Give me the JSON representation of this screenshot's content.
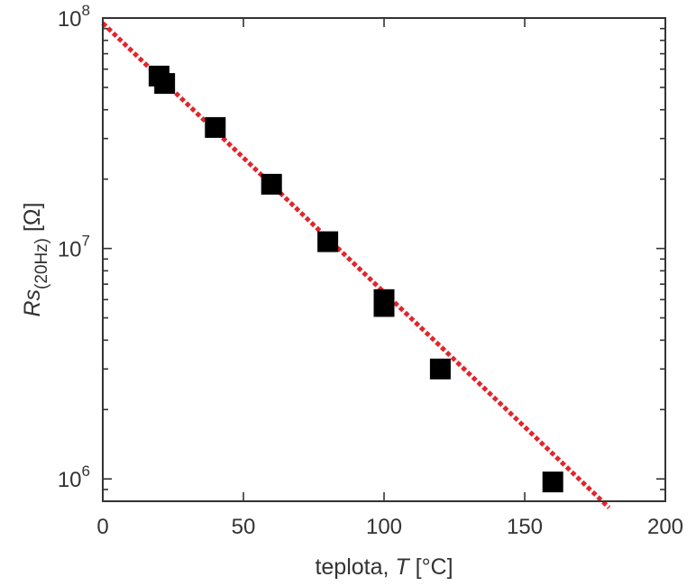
{
  "chart_data": {
    "type": "scatter",
    "xlabel": "teplota, T [°C]",
    "ylabel": "Rs(20Hz) [Ω]",
    "xlim": [
      0,
      200
    ],
    "ylim": [
      800000,
      100000000
    ],
    "yscale": "log",
    "x_ticks": [
      0,
      50,
      100,
      150,
      200
    ],
    "y_ticks": [
      1000000,
      10000000,
      100000000
    ],
    "grid": false,
    "legend": "none",
    "series": [
      {
        "type": "scatter",
        "marker": "square",
        "color": "#000000",
        "x": [
          20,
          22,
          40,
          60,
          80,
          100,
          100,
          120,
          160
        ],
        "y": [
          56000000,
          52000000,
          33500000,
          19000000,
          10700000,
          6000000,
          5600000,
          3000000,
          970000
        ]
      },
      {
        "type": "line",
        "style": "dotted",
        "color": "#e2252b",
        "x": [
          0,
          180
        ],
        "y": [
          95000000,
          750000
        ]
      }
    ]
  },
  "labels": {
    "x_main": "teplota, ",
    "x_var": "T",
    "x_unit": " [°C]",
    "y_main": "Rs",
    "y_sub": "(20Hz)",
    "y_unit": " [Ω]",
    "y_tick_base": "10",
    "y_tick_exponents": [
      "6",
      "7",
      "8"
    ]
  }
}
